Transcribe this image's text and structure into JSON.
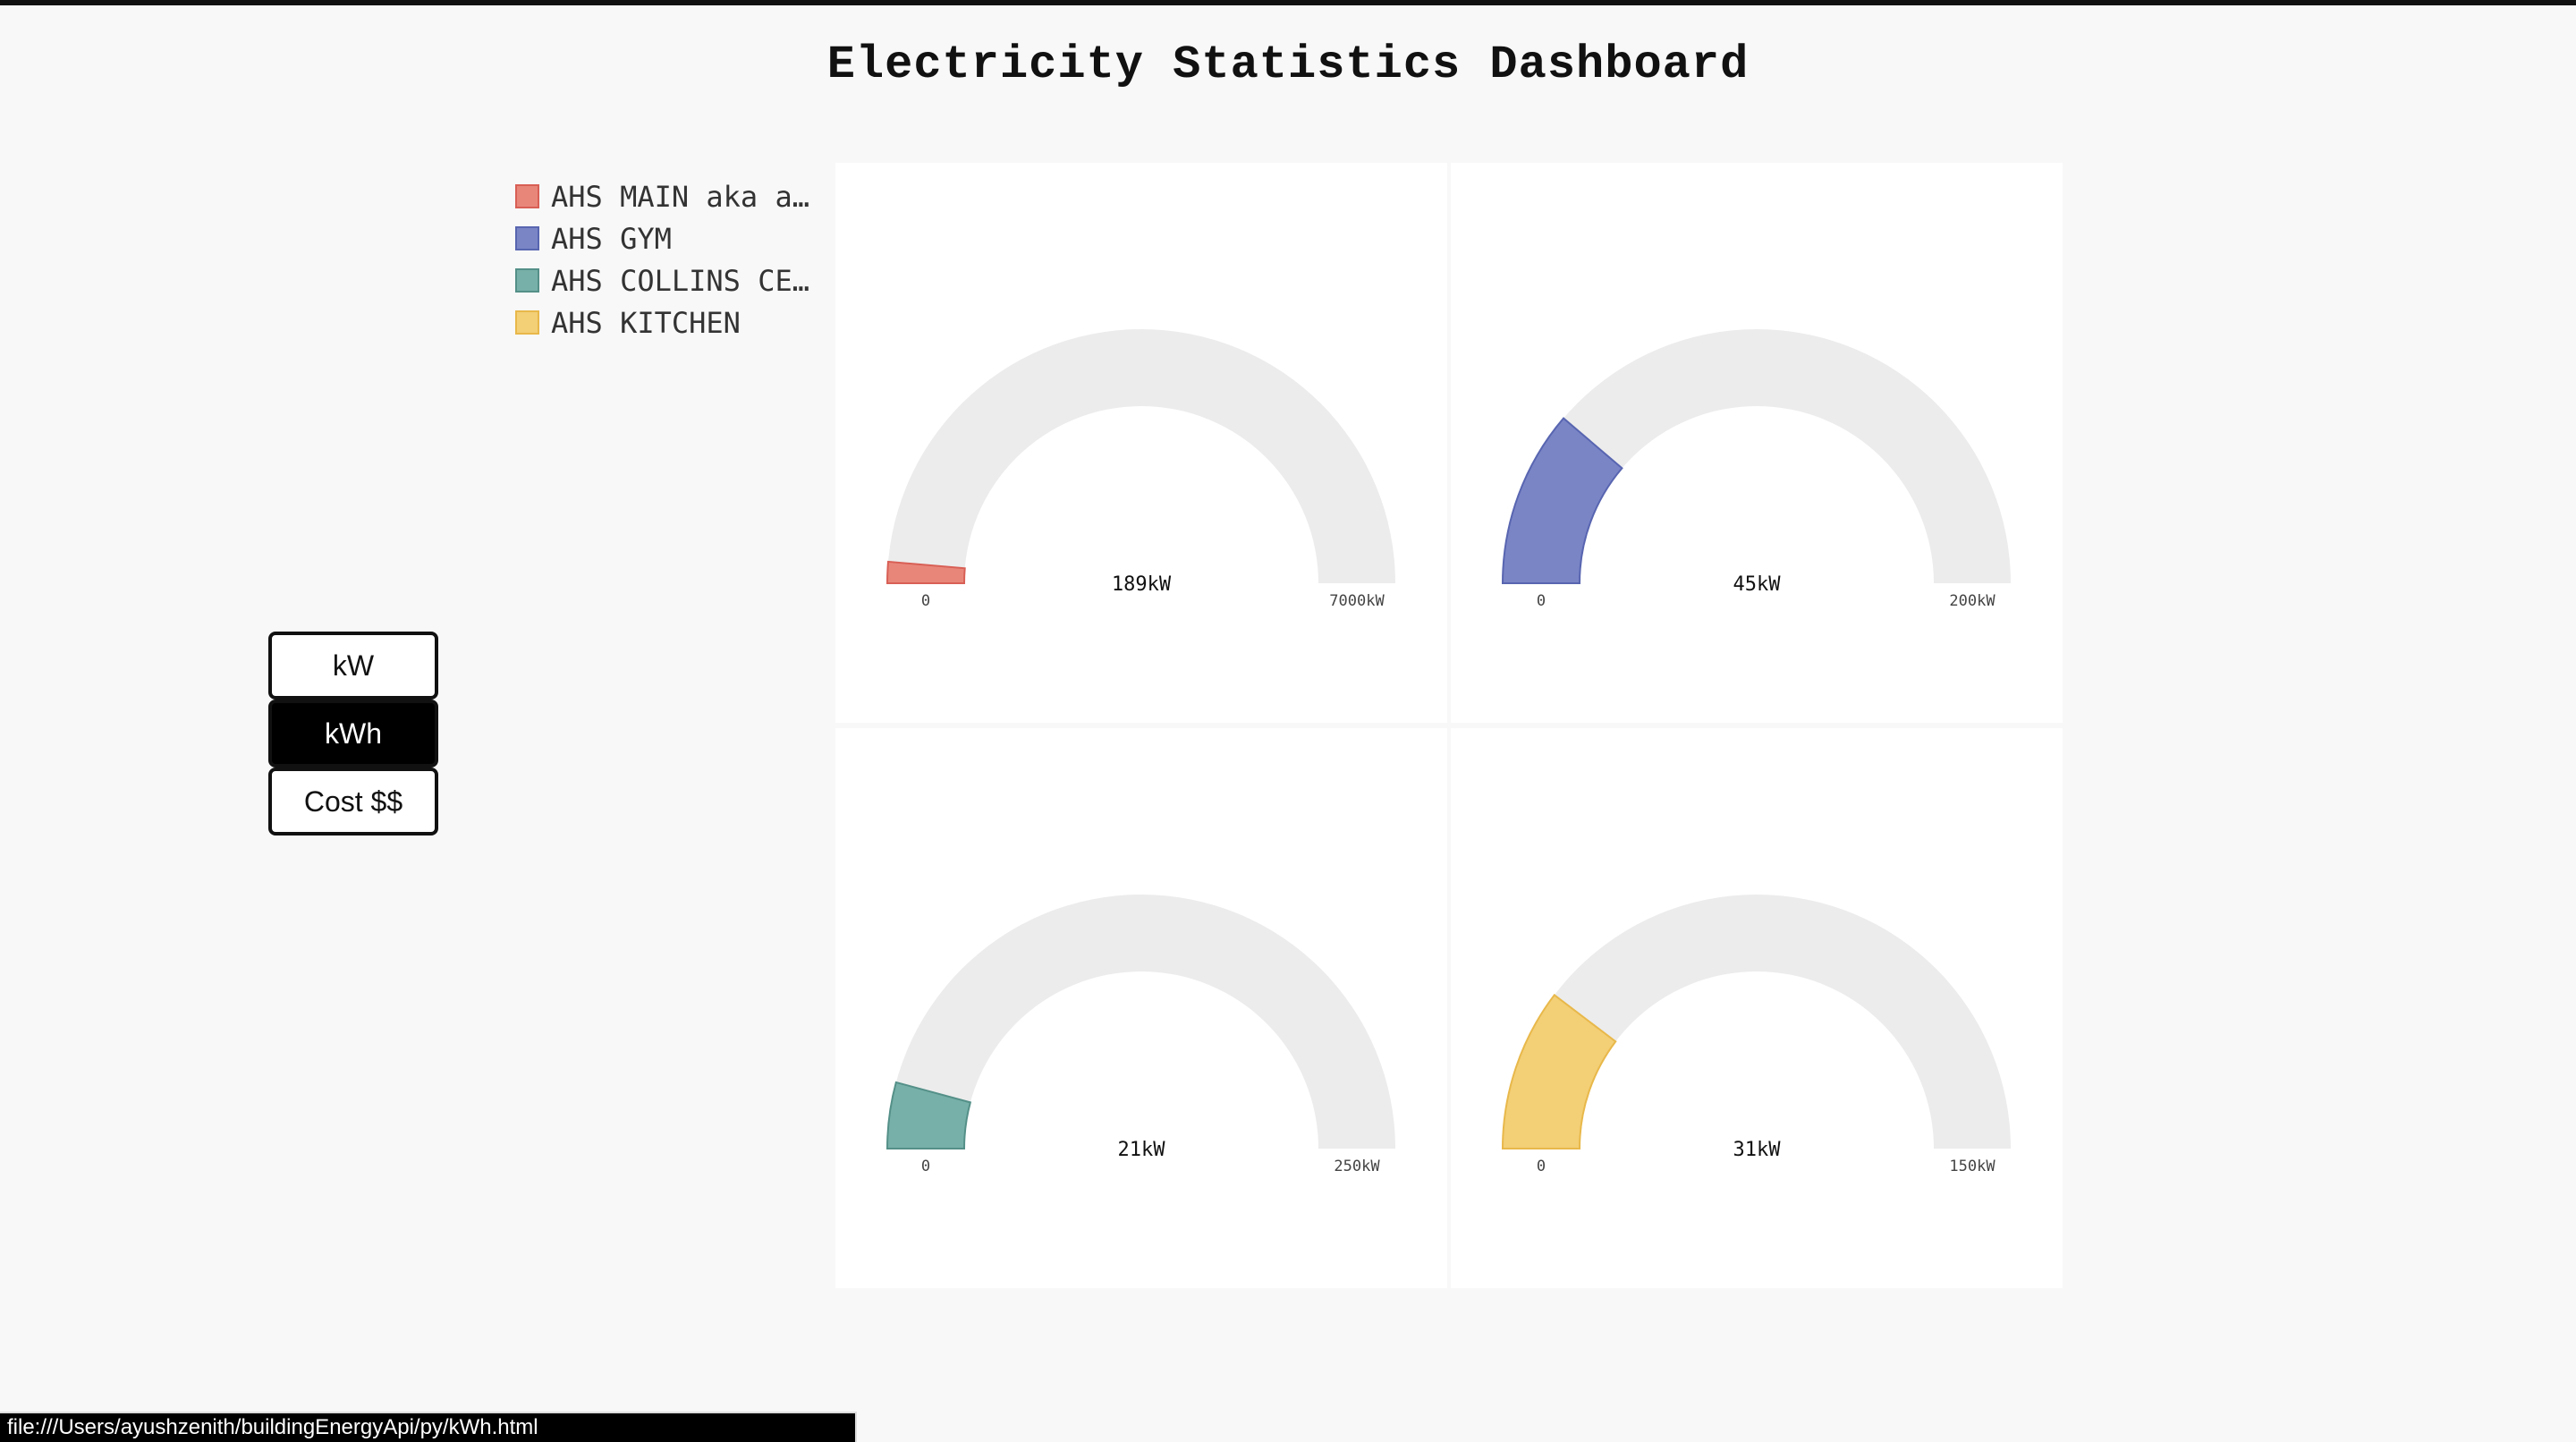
{
  "header": {
    "title": "Electricity Statistics Dashboard"
  },
  "legend": {
    "items": [
      {
        "label": "AHS MAIN aka a…",
        "color": "#e8867a",
        "border": "#d85f55"
      },
      {
        "label": "AHS GYM",
        "color": "#7a85c6",
        "border": "#5865b0"
      },
      {
        "label": "AHS COLLINS CE…",
        "color": "#77b0a8",
        "border": "#549088"
      },
      {
        "label": "AHS KITCHEN",
        "color": "#f3cf76",
        "border": "#e8b84a"
      }
    ]
  },
  "unit_toggle": {
    "buttons": [
      {
        "label": "kW",
        "active": false
      },
      {
        "label": "kWh",
        "active": true
      },
      {
        "label": "Cost $$",
        "active": false
      }
    ]
  },
  "gauges": [
    {
      "name": "AHS MAIN aka a…",
      "value": 189,
      "max": 7000,
      "value_label": "189kW",
      "min_label": "0",
      "max_label": "7000kW",
      "color": "#e8867a",
      "border": "#d85f55"
    },
    {
      "name": "AHS GYM",
      "value": 45,
      "max": 200,
      "value_label": "45kW",
      "min_label": "0",
      "max_label": "200kW",
      "color": "#7a85c6",
      "border": "#5865b0"
    },
    {
      "name": "AHS COLLINS CE…",
      "value": 21,
      "max": 250,
      "value_label": "21kW",
      "min_label": "0",
      "max_label": "250kW",
      "color": "#77b0a8",
      "border": "#549088"
    },
    {
      "name": "AHS KITCHEN",
      "value": 31,
      "max": 150,
      "value_label": "31kW",
      "min_label": "0",
      "max_label": "150kW",
      "color": "#f3cf76",
      "border": "#e8b84a"
    }
  ],
  "gauge_track_color": "#ececec",
  "status_bar": {
    "url": "file:///Users/ayushzenith/buildingEnergyApi/py/kWh.html"
  }
}
